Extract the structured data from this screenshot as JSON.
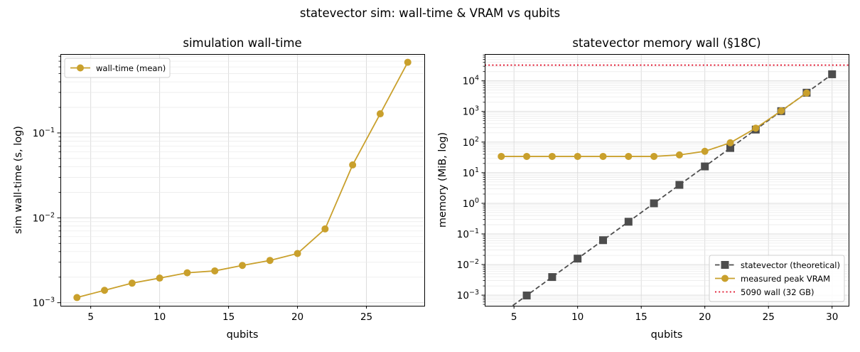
{
  "suptitle": "statevector sim: wall-time & VRAM vs qubits",
  "chart_data": [
    {
      "type": "line",
      "title": "simulation wall-time",
      "xlabel": "qubits",
      "ylabel": "sim wall-time (s, log)",
      "yscale": "log",
      "xlim": [
        2.8,
        29.2
      ],
      "ylim": [
        0.00092,
        0.85
      ],
      "xticks": [
        5,
        10,
        15,
        20,
        25
      ],
      "yticks": [
        {
          "value": 0.001,
          "base": "10",
          "exp": "−3"
        },
        {
          "value": 0.01,
          "base": "10",
          "exp": "−2"
        },
        {
          "value": 0.1,
          "base": "10",
          "exp": "−1"
        }
      ],
      "grid": true,
      "legend_position": "upper-left",
      "series": [
        {
          "name": "wall-time (mean)",
          "color": "#c9a02c",
          "marker": "circle",
          "linestyle": "solid",
          "x": [
            4,
            6,
            8,
            10,
            12,
            14,
            16,
            18,
            20,
            22,
            24,
            26,
            28
          ],
          "y": [
            0.00115,
            0.0014,
            0.0017,
            0.00195,
            0.00225,
            0.00237,
            0.00275,
            0.00315,
            0.0038,
            0.0074,
            0.042,
            0.168,
            0.68
          ]
        }
      ]
    },
    {
      "type": "line",
      "title": "statevector memory wall (§18C)",
      "xlabel": "qubits",
      "ylabel": "memory (MiB, log)",
      "yscale": "log",
      "xlim": [
        2.7,
        31.3
      ],
      "ylim": [
        0.00045,
        75000
      ],
      "xticks": [
        5,
        10,
        15,
        20,
        25,
        30
      ],
      "yticks": [
        {
          "value": 0.001,
          "base": "10",
          "exp": "−3"
        },
        {
          "value": 0.01,
          "base": "10",
          "exp": "−2"
        },
        {
          "value": 0.1,
          "base": "10",
          "exp": "−1"
        },
        {
          "value": 1,
          "base": "10",
          "exp": "0"
        },
        {
          "value": 10,
          "base": "10",
          "exp": "1"
        },
        {
          "value": 100,
          "base": "10",
          "exp": "2"
        },
        {
          "value": 1000,
          "base": "10",
          "exp": "3"
        },
        {
          "value": 10000,
          "base": "10",
          "exp": "4"
        }
      ],
      "grid": true,
      "legend_position": "lower-right",
      "series": [
        {
          "name": "statevector (theoretical)",
          "color": "#4d4d4d",
          "marker": "square",
          "linestyle": "dashed",
          "x": [
            4,
            6,
            8,
            10,
            12,
            14,
            16,
            18,
            20,
            22,
            24,
            26,
            28,
            30
          ],
          "y": [
            0.000244,
            0.000977,
            0.003906,
            0.015625,
            0.0625,
            0.25,
            1,
            4,
            16,
            64,
            256,
            1024,
            4096,
            16384
          ]
        },
        {
          "name": "measured peak VRAM",
          "color": "#c9a02c",
          "marker": "circle",
          "linestyle": "solid",
          "x": [
            4,
            6,
            8,
            10,
            12,
            14,
            16,
            18,
            20,
            22,
            24,
            26,
            28
          ],
          "y": [
            34,
            34,
            34,
            34,
            34,
            34,
            34,
            38,
            50,
            95,
            285,
            1050,
            4000
          ]
        },
        {
          "name": "5090 wall (32 GB)",
          "color": "#e0102a",
          "marker": "none",
          "linestyle": "dotted",
          "hline": 32607
        }
      ]
    }
  ]
}
